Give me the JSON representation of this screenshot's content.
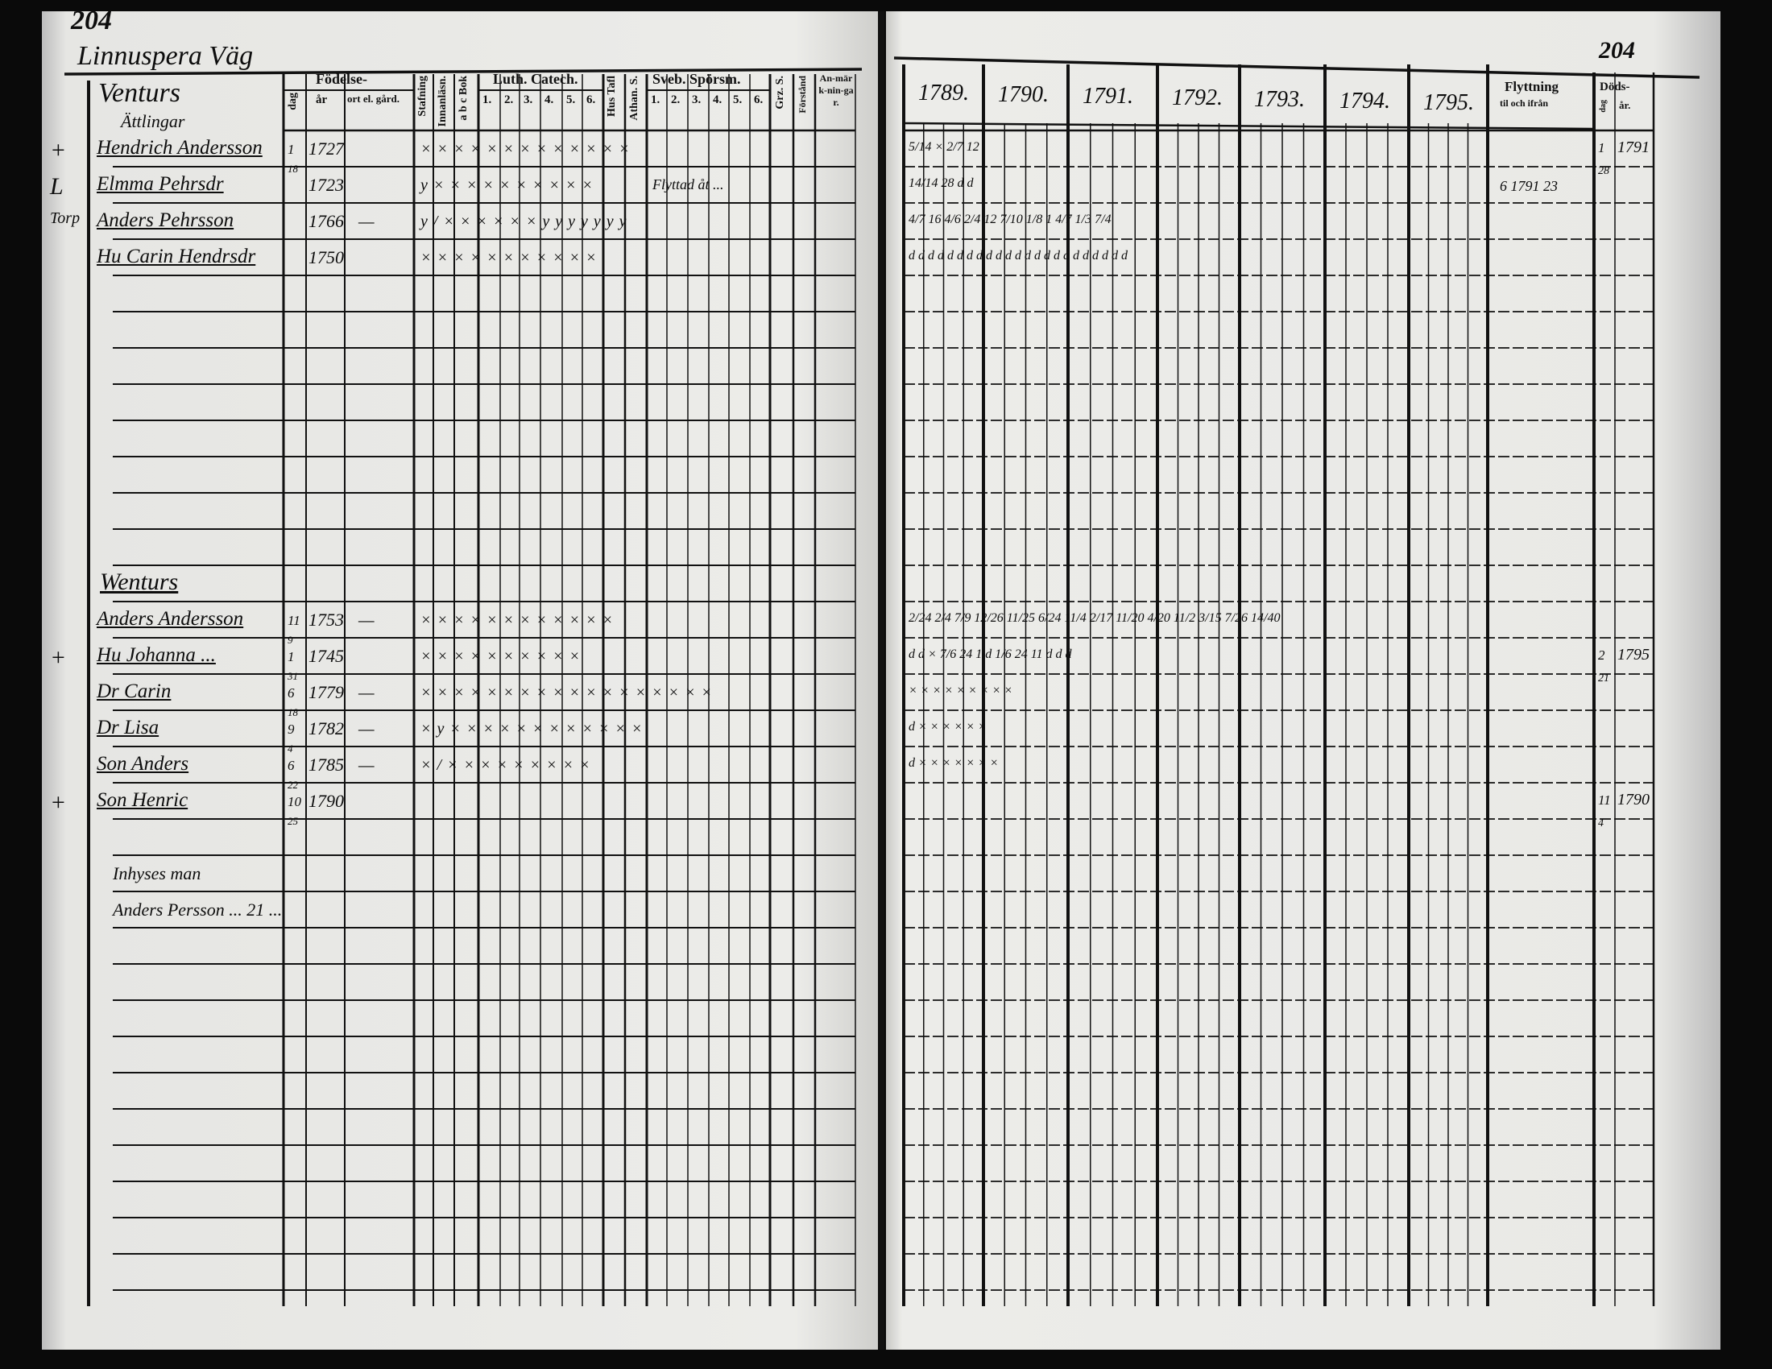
{
  "left_page": {
    "page_number": "204",
    "place": "Linnuspera Väg",
    "headers": {
      "name_col": "Venturs",
      "name_sub": "Ättlingar",
      "birth": "Födelse-",
      "birth_day": "dag",
      "birth_year": "år",
      "birth_place": "ort el. gård.",
      "stafning": "Stafning",
      "innanlasn": "Innanläsn.",
      "abc_bok": "a b c Bok",
      "luth_catech": "Luth. Catech.",
      "luth_parts": [
        "1.",
        "2.",
        "3.",
        "4.",
        "5.",
        "6."
      ],
      "hus_tafl": "Hus Tafl",
      "athan": "Athan. S.",
      "sveb": "Sveb. Spörsm.",
      "sveb_parts": [
        "1.",
        "2.",
        "3.",
        "4.",
        "5.",
        "6."
      ],
      "grz": "Grz. S.",
      "forstand": "Förstånd",
      "anmarkningar": "An-märk-nin-gar."
    },
    "entries": [
      {
        "row": 0,
        "marker": "+",
        "name": "Hendrich Andersson",
        "day": "1",
        "day_sub": "18",
        "year": "1727",
        "place": "",
        "marks": "× × × × × × × × × × × × ×",
        "remark": ""
      },
      {
        "row": 1,
        "marker": "L",
        "name": "Elmma Pehrsdr",
        "day": "",
        "day_sub": "",
        "year": "1723",
        "place": "",
        "marks": "y × × × × × × × × × ×",
        "remark": ""
      },
      {
        "row": 2,
        "marker": "Torp",
        "name": "Anders Pehrsson",
        "day": "",
        "day_sub": "",
        "year": "1766",
        "place": "—",
        "marks": "y / × × × × × × y y y y y y y",
        "remark": "Flyttad åt ..."
      },
      {
        "row": 3,
        "marker": "",
        "name": "Hu Carin Hendrsdr",
        "day": "",
        "day_sub": "",
        "year": "1750",
        "place": "",
        "marks": "× × × × × × × × × × ×",
        "remark": ""
      },
      {
        "row": 13,
        "marker": "",
        "name": "Anders Andersson",
        "day": "11",
        "day_sub": "9",
        "year": "1753",
        "place": "—",
        "marks": "× × × × × × × × × × × ×",
        "remark": ""
      },
      {
        "row": 14,
        "marker": "+",
        "name": "Hu Johanna ...",
        "day": "1",
        "day_sub": "31",
        "year": "1745",
        "place": "",
        "marks": "× × × × × × × × × ×",
        "remark": ""
      },
      {
        "row": 15,
        "marker": "",
        "name": "Dr Carin",
        "day": "6",
        "day_sub": "18",
        "year": "1779",
        "place": "—",
        "marks": "× × × × × × × × × × × × × × × × × ×",
        "remark": ""
      },
      {
        "row": 16,
        "marker": "",
        "name": "Dr Lisa",
        "day": "9",
        "day_sub": "4",
        "year": "1782",
        "place": "—",
        "marks": "× y × × × × × × × × × × × ×",
        "remark": ""
      },
      {
        "row": 17,
        "marker": "",
        "name": "Son Anders",
        "day": "6",
        "day_sub": "22",
        "year": "1785",
        "place": "—",
        "marks": "× / × × × × × × × × ×",
        "remark": ""
      },
      {
        "row": 18,
        "marker": "+",
        "name": "Son Henric",
        "day": "10",
        "day_sub": "25",
        "year": "1790",
        "place": "",
        "marks": "",
        "remark": ""
      }
    ],
    "section_title": {
      "row": 12,
      "text": "Wenturs"
    },
    "notes": [
      {
        "row": 20,
        "text": "Inhyses man"
      },
      {
        "row": 21,
        "text": "Anders Persson   ... 21 ..."
      }
    ]
  },
  "right_page": {
    "page_number": "204",
    "years": [
      "1789.",
      "1790.",
      "1791.",
      "1792.",
      "1793.",
      "1794.",
      "1795."
    ],
    "moving": "Flyttning",
    "moving_sub": "til och ifrån",
    "death": "Döds-",
    "death_day": "dag",
    "death_year": "år.",
    "entries": [
      {
        "row": 0,
        "cells": "5/14   ×   2/7    12",
        "moving": "",
        "death_day": "1",
        "death_year": "1791",
        "death_sub": "28"
      },
      {
        "row": 1,
        "cells": "14/14   28   d   d",
        "moving": "6 1791 23",
        "death_day": "",
        "death_year": "",
        "death_sub": ""
      },
      {
        "row": 2,
        "cells": "4/7 16   4/6   2/4 12   7/10   1/8   1 4/7   1/3 7/4",
        "moving": "",
        "death_day": "",
        "death_year": "",
        "death_sub": ""
      },
      {
        "row": 3,
        "cells": "d d   d d d   d d   d d d d   d d d d   d d d d   d d d d",
        "moving": "",
        "death_day": "",
        "death_year": "",
        "death_sub": ""
      },
      {
        "row": 13,
        "cells": "2/24   2/4 7/9   12/26 11/25   6/24 11/4   2/17 11/20   4/20 11/2   3/15 7/26 14/40",
        "moving": "",
        "death_day": "",
        "death_year": "",
        "death_sub": ""
      },
      {
        "row": 14,
        "cells": "d d   ×   7/6 24   1   d   1/6 24 11   d   d   d",
        "moving": "",
        "death_day": "2",
        "death_year": "1795",
        "death_sub": "21"
      },
      {
        "row": 15,
        "cells": "×   ×   ×   ×   ×   ×   ×   ×   ×",
        "moving": "",
        "death_day": "",
        "death_year": "",
        "death_sub": ""
      },
      {
        "row": 16,
        "cells": "d   ×   ×   ×   ×   ×   ×",
        "moving": "",
        "death_day": "",
        "death_year": "",
        "death_sub": ""
      },
      {
        "row": 17,
        "cells": "d   ×   ×   ×   ×   ×   ×   ×",
        "moving": "",
        "death_day": "",
        "death_year": "",
        "death_sub": ""
      },
      {
        "row": 18,
        "cells": "",
        "moving": "",
        "death_day": "11",
        "death_year": "1790",
        "death_sub": "4"
      }
    ]
  },
  "colors": {
    "paper": "#e9e9e6",
    "ink": "#111111",
    "background": "#0a0a0a"
  }
}
